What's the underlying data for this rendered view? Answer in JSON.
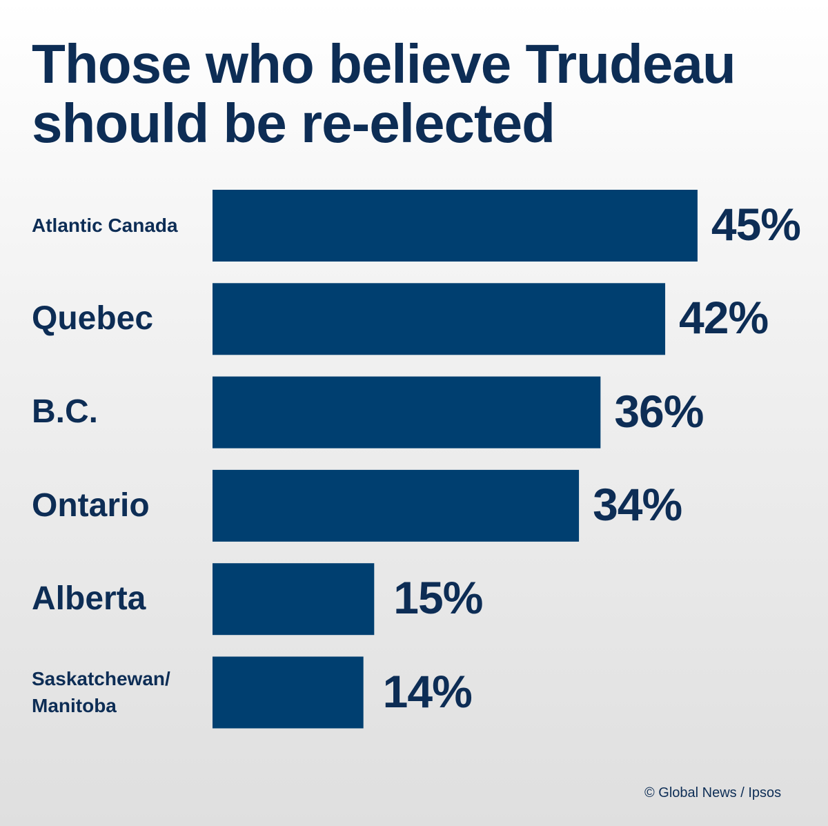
{
  "chart_data": {
    "type": "bar",
    "orientation": "horizontal",
    "title": "Those who believe Trudeau should be re-elected",
    "title_lines": [
      "Those who believe Trudeau",
      "should be re-elected"
    ],
    "categories": [
      "Atlantic Canada",
      "Quebec",
      "B.C.",
      "Ontario",
      "Alberta",
      "Saskatchewan/ Manitoba"
    ],
    "category_lines": [
      [
        "Atlantic Canada"
      ],
      [
        "Quebec"
      ],
      [
        "B.C."
      ],
      [
        "Ontario"
      ],
      [
        "Alberta"
      ],
      [
        "Saskatchewan/",
        "Manitoba"
      ]
    ],
    "values": [
      45,
      42,
      36,
      34,
      15,
      14
    ],
    "value_labels": [
      "45%",
      "42%",
      "36%",
      "34%",
      "15%",
      "14%"
    ],
    "xlim": [
      0,
      45
    ],
    "grid": false,
    "bar_color": "#003f70",
    "text_color": "#0d2d55"
  },
  "credit": "© Global News / Ipsos"
}
